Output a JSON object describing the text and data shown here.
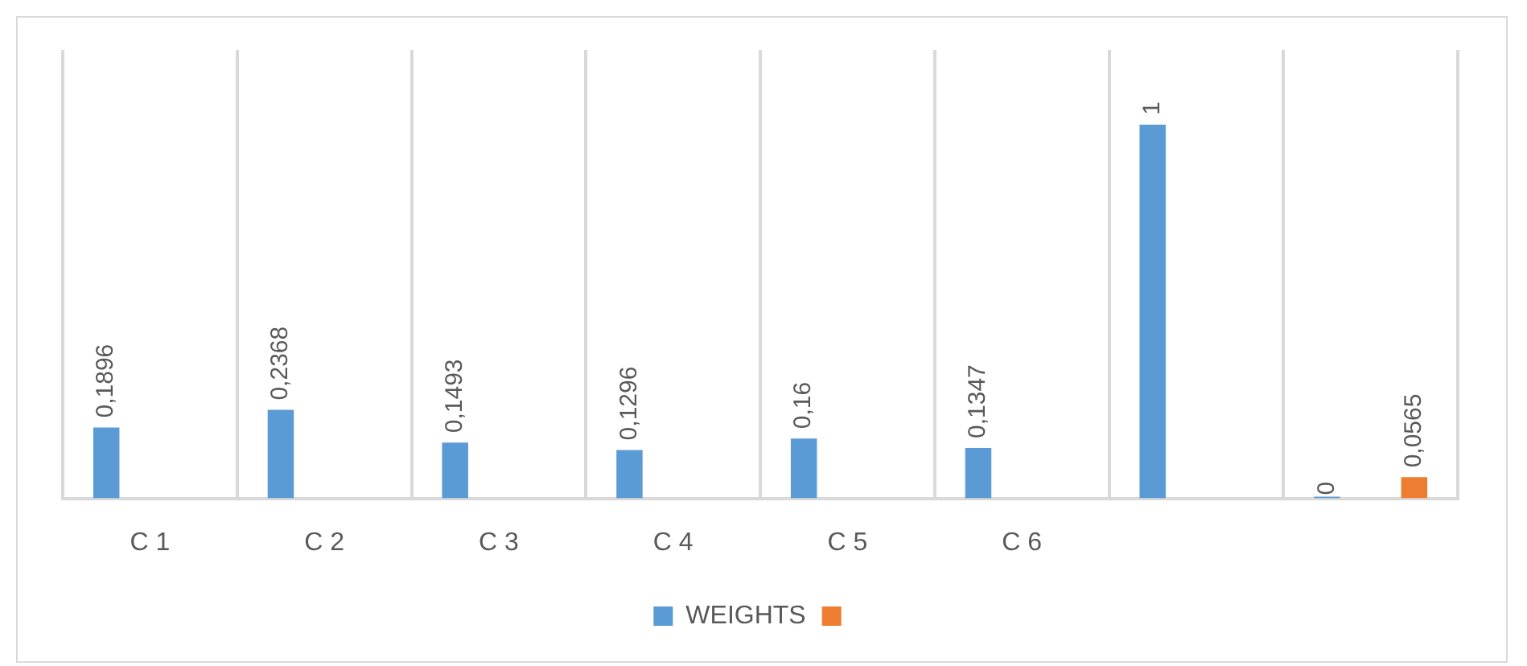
{
  "chart_data": {
    "type": "bar",
    "categories": [
      "C 1",
      "C 2",
      "C 3",
      "C 4",
      "C 5",
      "C 6",
      null,
      null
    ],
    "series": [
      {
        "name": "WEIGHTS",
        "color": "#5b9bd5",
        "values": [
          0.1896,
          0.2368,
          0.1493,
          0.1296,
          0.16,
          0.1347,
          1,
          0
        ],
        "value_labels": [
          "0,1896",
          "0,2368",
          "0,1493",
          "0,1296",
          "0,16",
          "0,1347",
          "1",
          "0"
        ]
      },
      {
        "color": "#ed7d31",
        "values": [
          null,
          null,
          null,
          null,
          null,
          null,
          null,
          0.0565
        ],
        "value_labels": [
          null,
          null,
          null,
          null,
          null,
          null,
          null,
          "0,0565"
        ]
      }
    ],
    "ylim": [
      0,
      1.2
    ],
    "tick_labels": "x",
    "grid": "x",
    "legend": "bottom"
  }
}
